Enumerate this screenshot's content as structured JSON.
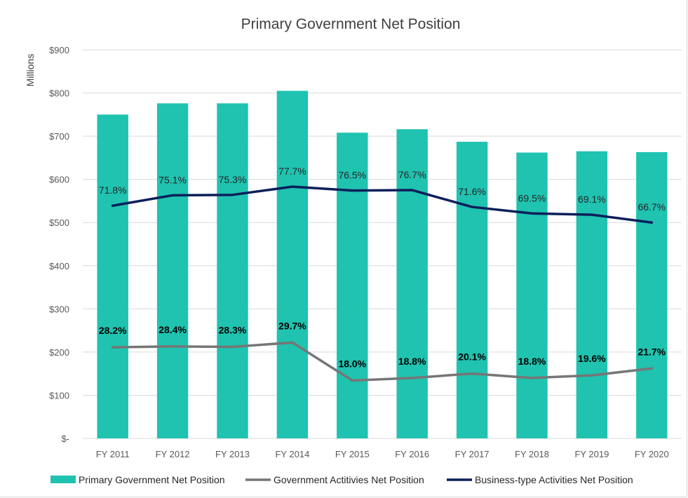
{
  "chart_data": {
    "type": "bar",
    "title": "Primary Government Net Position",
    "ylabel": "Millions",
    "ylim": [
      0,
      900
    ],
    "yticks": [
      {
        "value": 0,
        "label": "$-"
      },
      {
        "value": 100,
        "label": "$100"
      },
      {
        "value": 200,
        "label": "$200"
      },
      {
        "value": 300,
        "label": "$300"
      },
      {
        "value": 400,
        "label": "$400"
      },
      {
        "value": 500,
        "label": "$500"
      },
      {
        "value": 600,
        "label": "$600"
      },
      {
        "value": 700,
        "label": "$700"
      },
      {
        "value": 800,
        "label": "$800"
      },
      {
        "value": 900,
        "label": "$900"
      }
    ],
    "categories": [
      "FY 2011",
      "FY 2012",
      "FY 2013",
      "FY 2014",
      "FY 2015",
      "FY 2016",
      "FY 2017",
      "FY 2018",
      "FY 2019",
      "FY 2020"
    ],
    "grid": true,
    "legend_position": "bottom",
    "series": [
      {
        "name": "Primary Government Net Position",
        "kind": "bar",
        "color": "#1fc3b0",
        "values": [
          750,
          776,
          776,
          805,
          708,
          716,
          687,
          662,
          665,
          663
        ]
      },
      {
        "name": "Government Actitivies Net Position",
        "kind": "line",
        "color": "#767676",
        "values": [
          211,
          213,
          212,
          222,
          134,
          140,
          150,
          140,
          146,
          162
        ],
        "labels": [
          "28.2%",
          "28.4%",
          "28.3%",
          "29.7%",
          "18.0%",
          "18.8%",
          "20.1%",
          "18.8%",
          "19.6%",
          "21.7%"
        ]
      },
      {
        "name": "Business-type Activities Net Position",
        "kind": "line",
        "color": "#0c1f5a",
        "values": [
          539,
          563,
          564,
          583,
          574,
          575,
          536,
          521,
          518,
          500
        ],
        "labels": [
          "71.8%",
          "75.1%",
          "75.3%",
          "77.7%",
          "76.5%",
          "76.7%",
          "71.6%",
          "69.5%",
          "69.1%",
          "66.7%"
        ]
      }
    ]
  }
}
